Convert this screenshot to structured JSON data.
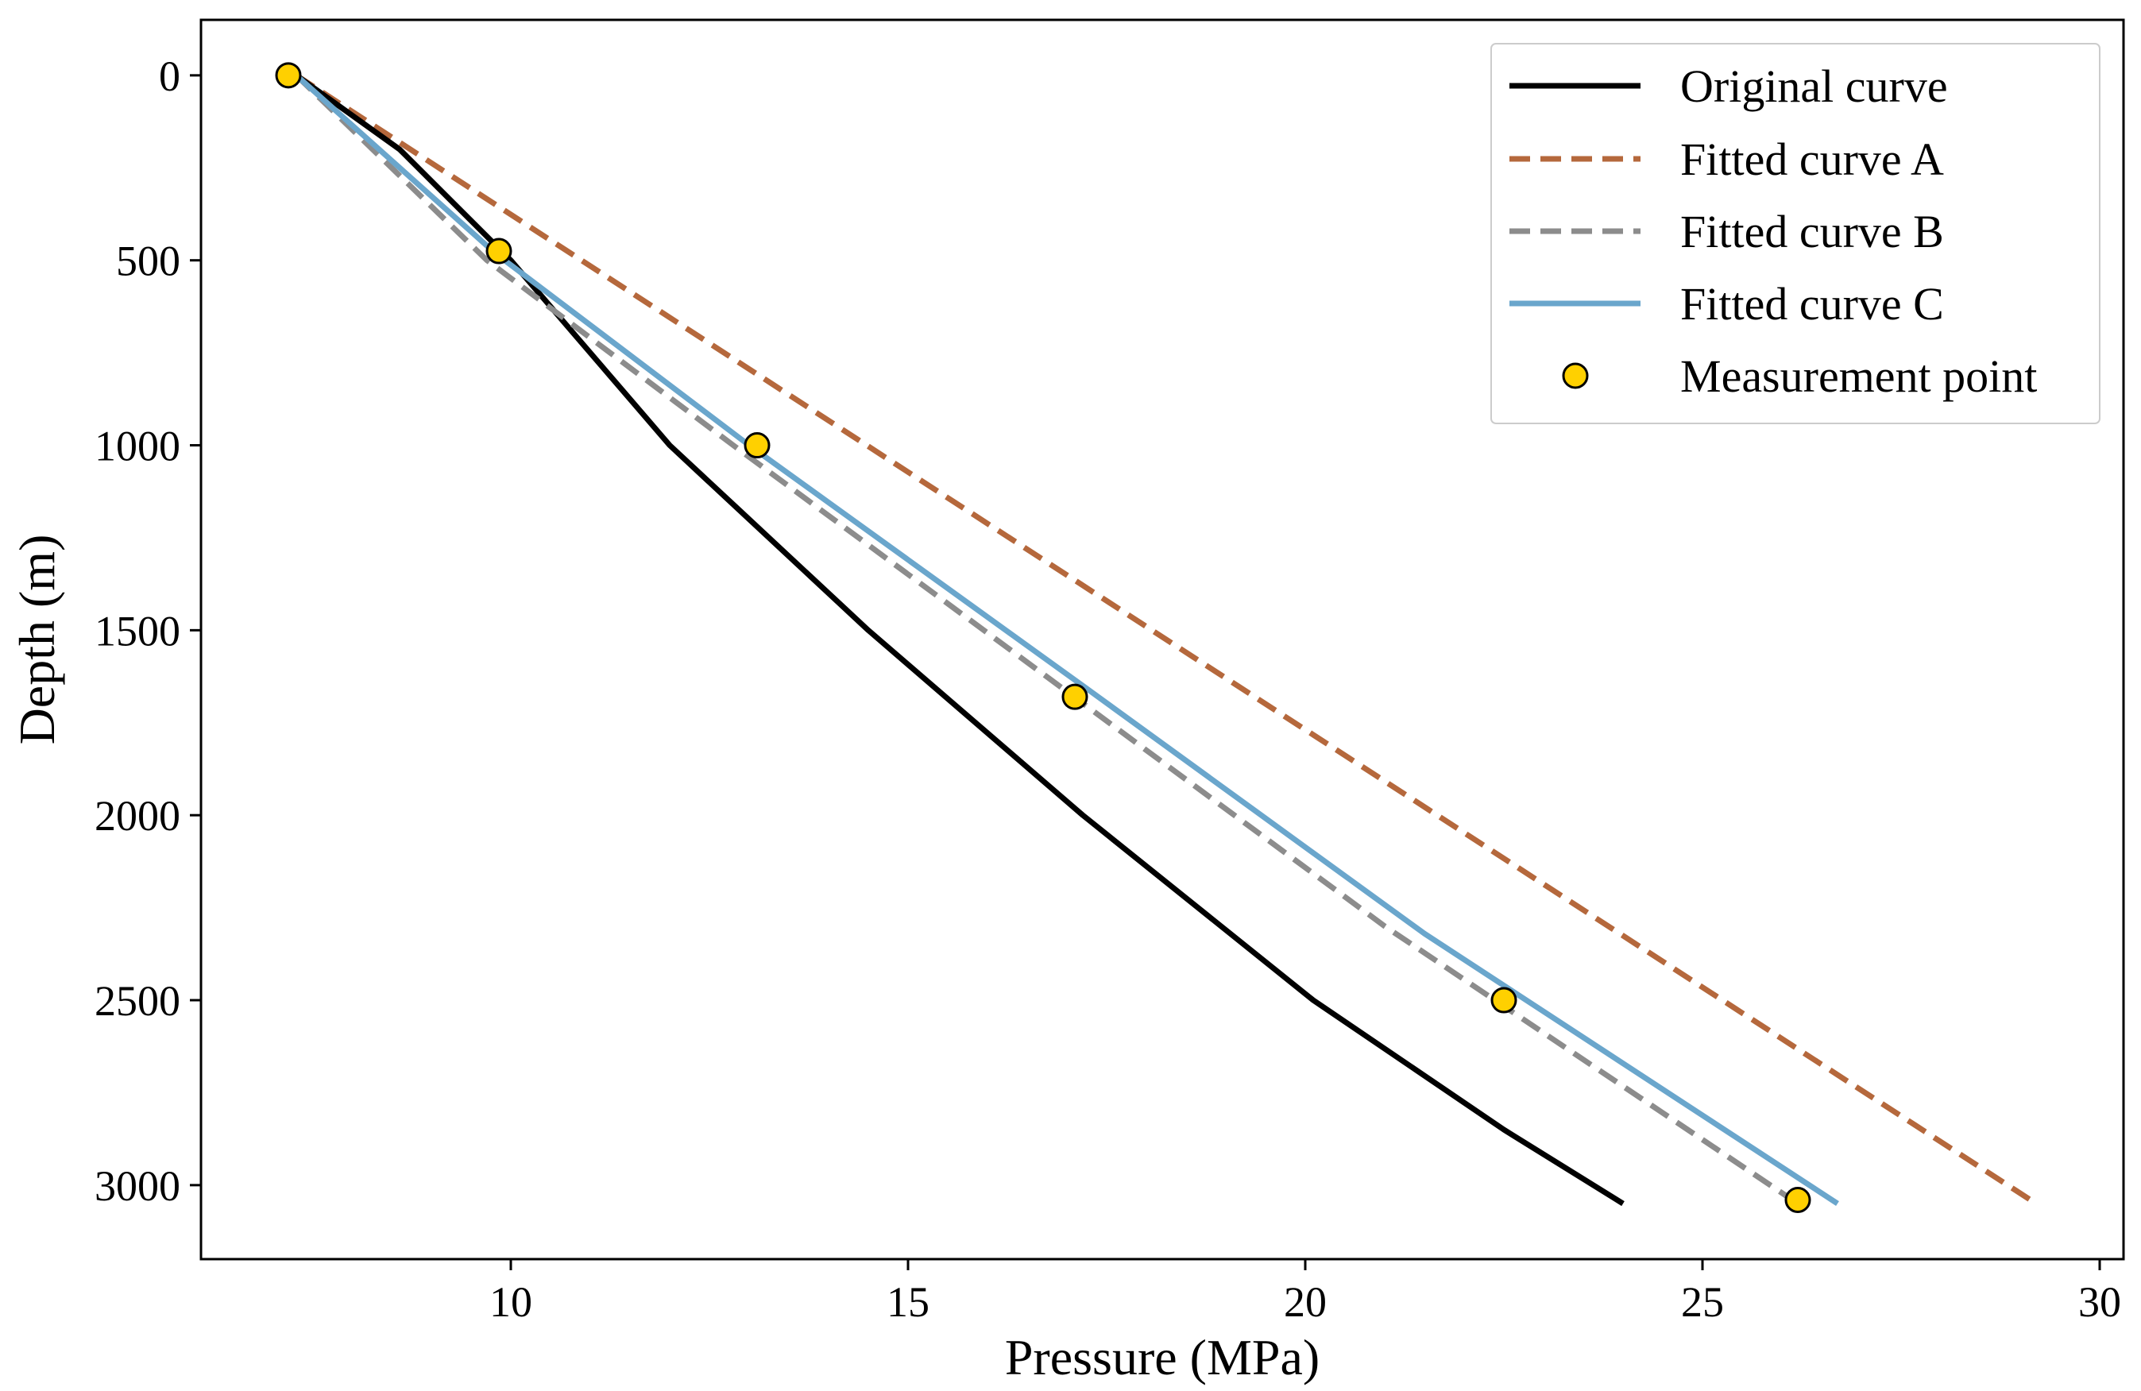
{
  "chart_data": {
    "type": "line",
    "title": "",
    "xlabel": "Pressure (MPa)",
    "ylabel": "Depth (m)",
    "xlim": [
      6.1,
      30.3
    ],
    "ylim": [
      3200,
      -150
    ],
    "x_ticks": [
      10,
      15,
      20,
      25,
      30
    ],
    "y_ticks": [
      0,
      500,
      1000,
      1500,
      2000,
      2500,
      3000
    ],
    "grid": false,
    "legend_position": "top-right",
    "series": [
      {
        "name": "Original curve",
        "color": "#000000",
        "style": "solid",
        "points": [
          [
            7.3,
            0
          ],
          [
            8.6,
            200
          ],
          [
            10.0,
            500
          ],
          [
            12.0,
            1000
          ],
          [
            14.5,
            1500
          ],
          [
            17.2,
            2000
          ],
          [
            20.1,
            2500
          ],
          [
            22.5,
            2850
          ],
          [
            24.0,
            3050
          ]
        ]
      },
      {
        "name": "Fitted curve A",
        "color": "#b5683c",
        "style": "dashed",
        "points": [
          [
            7.3,
            0
          ],
          [
            29.2,
            3050
          ]
        ]
      },
      {
        "name": "Fitted curve B",
        "color": "#8c8c8c",
        "style": "dashed",
        "points": [
          [
            7.3,
            0
          ],
          [
            9.7,
            500
          ],
          [
            12.8,
            1000
          ],
          [
            16.9,
            1650
          ],
          [
            21.0,
            2300
          ],
          [
            26.2,
            3050
          ]
        ]
      },
      {
        "name": "Fitted curve C",
        "color": "#6aa6cc",
        "style": "solid",
        "points": [
          [
            7.3,
            0
          ],
          [
            9.8,
            480
          ],
          [
            13.0,
            1000
          ],
          [
            17.2,
            1650
          ],
          [
            21.5,
            2320
          ],
          [
            26.7,
            3050
          ]
        ]
      }
    ],
    "measurements": {
      "name": "Measurement point",
      "color": "#ffd000",
      "edge_color": "#000000",
      "points": [
        [
          7.2,
          0
        ],
        [
          9.85,
          475
        ],
        [
          13.1,
          1000
        ],
        [
          17.1,
          1680
        ],
        [
          22.5,
          2500
        ],
        [
          26.2,
          3040
        ]
      ]
    }
  }
}
